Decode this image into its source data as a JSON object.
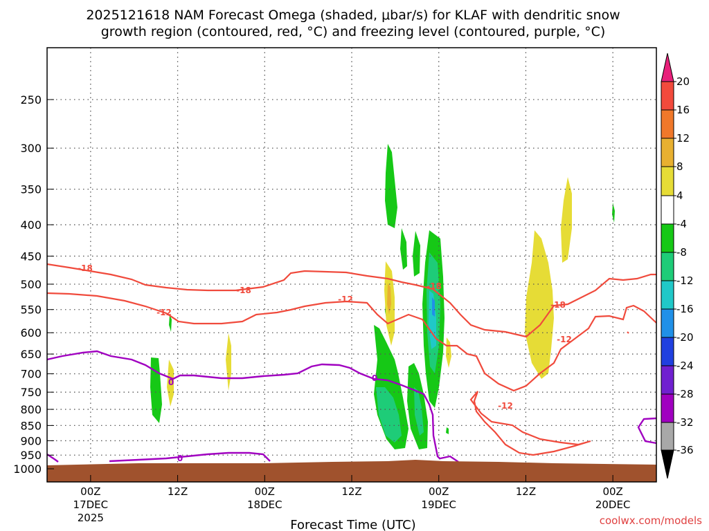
{
  "title_line1": "2025121618 NAM Forecast Omega (shaded, μbar/s) for KLAF with dendritic snow",
  "title_line2": "growth region (contoured, red, °C) and freezing level (contoured, purple, °C)",
  "credit": "coolwx.com/models",
  "chart_data": {
    "type": "time-height cross section",
    "title": "2025121618 NAM Forecast Omega (shaded, μbar/s) for KLAF with dendritic snow growth region (contoured, red, °C) and freezing level (contoured, purple, °C)",
    "xlabel": "Forecast Time (UTC)",
    "ylabel": "",
    "y_axis": {
      "scale": "pressure (hPa, log)",
      "range": [
        1000,
        200
      ],
      "ticks": [
        "250",
        "300",
        "350",
        "400",
        "450",
        "500",
        "550",
        "600",
        "650",
        "700",
        "750",
        "800",
        "850",
        "900",
        "950",
        "1000"
      ],
      "grid": true
    },
    "x_axis": {
      "range_hours_from_init": [
        0,
        84
      ],
      "ticks": [
        {
          "label": "00Z",
          "sub1": "17DEC",
          "sub2": "2025",
          "hour": 6
        },
        {
          "label": "12Z",
          "sub1": "",
          "sub2": "",
          "hour": 18
        },
        {
          "label": "00Z",
          "sub1": "18DEC",
          "sub2": "",
          "hour": 30
        },
        {
          "label": "12Z",
          "sub1": "",
          "sub2": "",
          "hour": 42
        },
        {
          "label": "00Z",
          "sub1": "19DEC",
          "sub2": "",
          "hour": 54
        },
        {
          "label": "12Z",
          "sub1": "",
          "sub2": "",
          "hour": 66
        },
        {
          "label": "00Z",
          "sub1": "20DEC",
          "sub2": "",
          "hour": 78
        }
      ]
    },
    "colorbar": {
      "labels": [
        "20",
        "16",
        "12",
        "8",
        "4",
        "-4",
        "-8",
        "-12",
        "-16",
        "-20",
        "-24",
        "-28",
        "-32",
        "-36"
      ],
      "bins": [
        {
          "range": ">20",
          "color": "#e8207a"
        },
        {
          "range": "16-20",
          "color": "#f24a3c"
        },
        {
          "range": "12-16",
          "color": "#f0782a"
        },
        {
          "range": "8-12",
          "color": "#e8b030"
        },
        {
          "range": "4-8",
          "color": "#e6dc36"
        },
        {
          "range": "-4-4",
          "color": "#ffffff"
        },
        {
          "range": "-8--4",
          "color": "#16c816"
        },
        {
          "range": "-12--8",
          "color": "#1ecc78"
        },
        {
          "range": "-16--12",
          "color": "#20c8c8"
        },
        {
          "range": "-20--16",
          "color": "#2090e8"
        },
        {
          "range": "-24--20",
          "color": "#2040e0"
        },
        {
          "range": "-28--24",
          "color": "#7020d0"
        },
        {
          "range": "-32--28",
          "color": "#a000c0"
        },
        {
          "range": "-36--32",
          "color": "#a8a8a8"
        },
        {
          "range": "<-36",
          "color": "#000000"
        }
      ]
    },
    "contours": {
      "dgz_red": [
        "-18",
        "-18",
        "-12",
        "-18",
        "-18",
        "-12",
        "-12"
      ],
      "freezing_purple": [
        "0",
        "0",
        "0"
      ]
    },
    "omega_regions": [
      {
        "name": "green",
        "value_range": [
          -8,
          -4
        ]
      },
      {
        "name": "teal",
        "value_range": [
          -12,
          -8
        ]
      },
      {
        "name": "cyan",
        "value_range": [
          -16,
          -12
        ]
      },
      {
        "name": "yellow",
        "value_range": [
          4,
          8
        ]
      },
      {
        "name": "orange",
        "value_range": [
          8,
          12
        ]
      }
    ],
    "ground": {
      "color": "#a0522d"
    }
  }
}
